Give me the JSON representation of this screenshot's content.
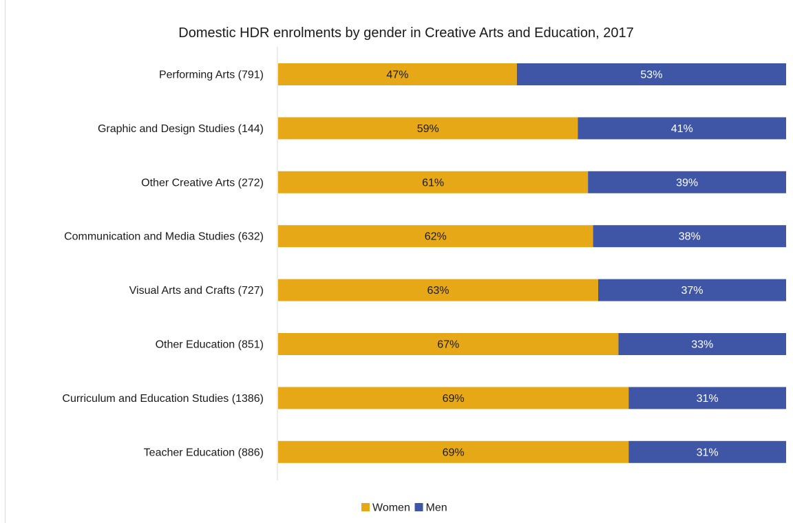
{
  "chart_data": {
    "type": "bar",
    "orientation": "horizontal",
    "stacked": true,
    "title": "Domestic HDR enrolments by gender in Creative Arts and Education, 2017",
    "categories": [
      "Performing Arts (791)",
      "Graphic and Design Studies (144)",
      "Other Creative Arts (272)",
      "Communication and Media Studies (632)",
      "Visual Arts and Crafts (727)",
      "Other Education (851)",
      "Curriculum and Education Studies (1386)",
      "Teacher Education (886)"
    ],
    "series": [
      {
        "name": "Women",
        "color": "#E6A817",
        "label_color": "#1a1a1a",
        "values": [
          47,
          59,
          61,
          62,
          63,
          67,
          69,
          69
        ],
        "labels": [
          "47%",
          "59%",
          "61%",
          "62%",
          "63%",
          "67%",
          "69%",
          "69%"
        ]
      },
      {
        "name": "Men",
        "color": "#3F56A6",
        "label_color": "#ffffff",
        "values": [
          53,
          41,
          39,
          38,
          37,
          33,
          31,
          31
        ],
        "labels": [
          "53%",
          "41%",
          "39%",
          "38%",
          "37%",
          "33%",
          "31%",
          "31%"
        ]
      }
    ],
    "xlim": [
      0,
      100
    ],
    "grid": false,
    "legend_position": "bottom"
  }
}
